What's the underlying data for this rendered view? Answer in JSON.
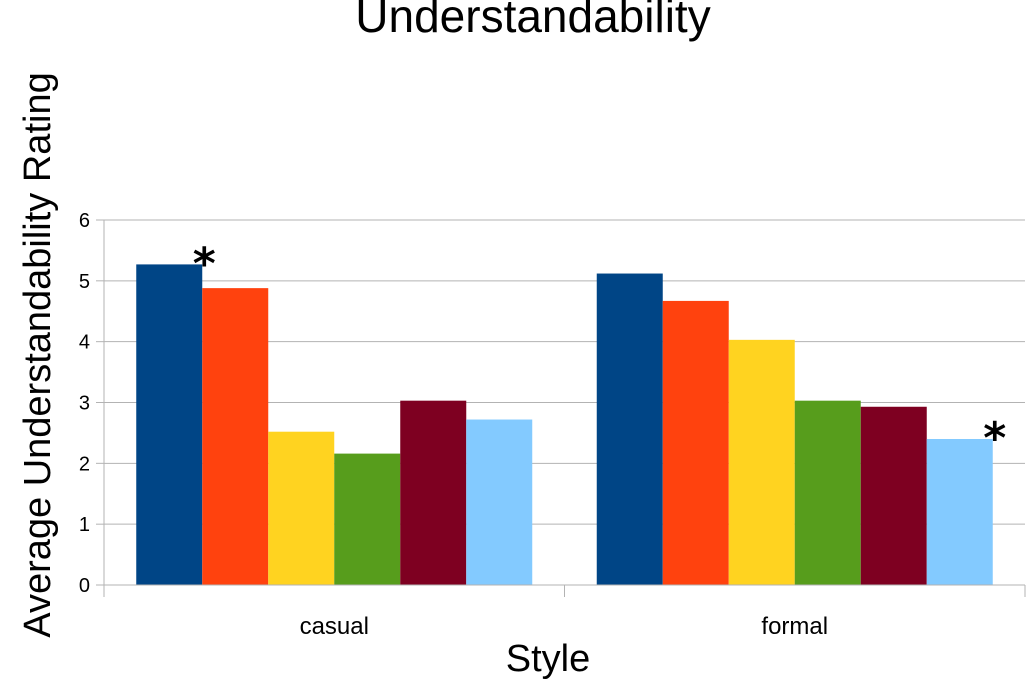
{
  "chart_data": {
    "type": "bar",
    "title": "Understandability",
    "xlabel": "Style",
    "ylabel": "Average Understandability Rating",
    "ylim": [
      0,
      6
    ],
    "yticks": [
      "0",
      "1",
      "2",
      "3",
      "4",
      "5",
      "6"
    ],
    "categories": [
      "casual",
      "formal"
    ],
    "grid": true,
    "legend": "none",
    "series": [
      {
        "color": "#004586",
        "values": [
          5.27,
          5.12
        ]
      },
      {
        "color": "#ff420e",
        "values": [
          4.88,
          4.67
        ]
      },
      {
        "color": "#ffd320",
        "values": [
          2.52,
          4.03
        ]
      },
      {
        "color": "#579d1c",
        "values": [
          2.16,
          3.03
        ]
      },
      {
        "color": "#7e0021",
        "values": [
          3.03,
          2.93
        ]
      },
      {
        "color": "#83caff",
        "values": [
          2.72,
          2.4
        ]
      }
    ],
    "annotations": [
      {
        "text": "*",
        "category": 0,
        "series": 0
      },
      {
        "text": "*",
        "category": 1,
        "series": 5
      }
    ]
  }
}
